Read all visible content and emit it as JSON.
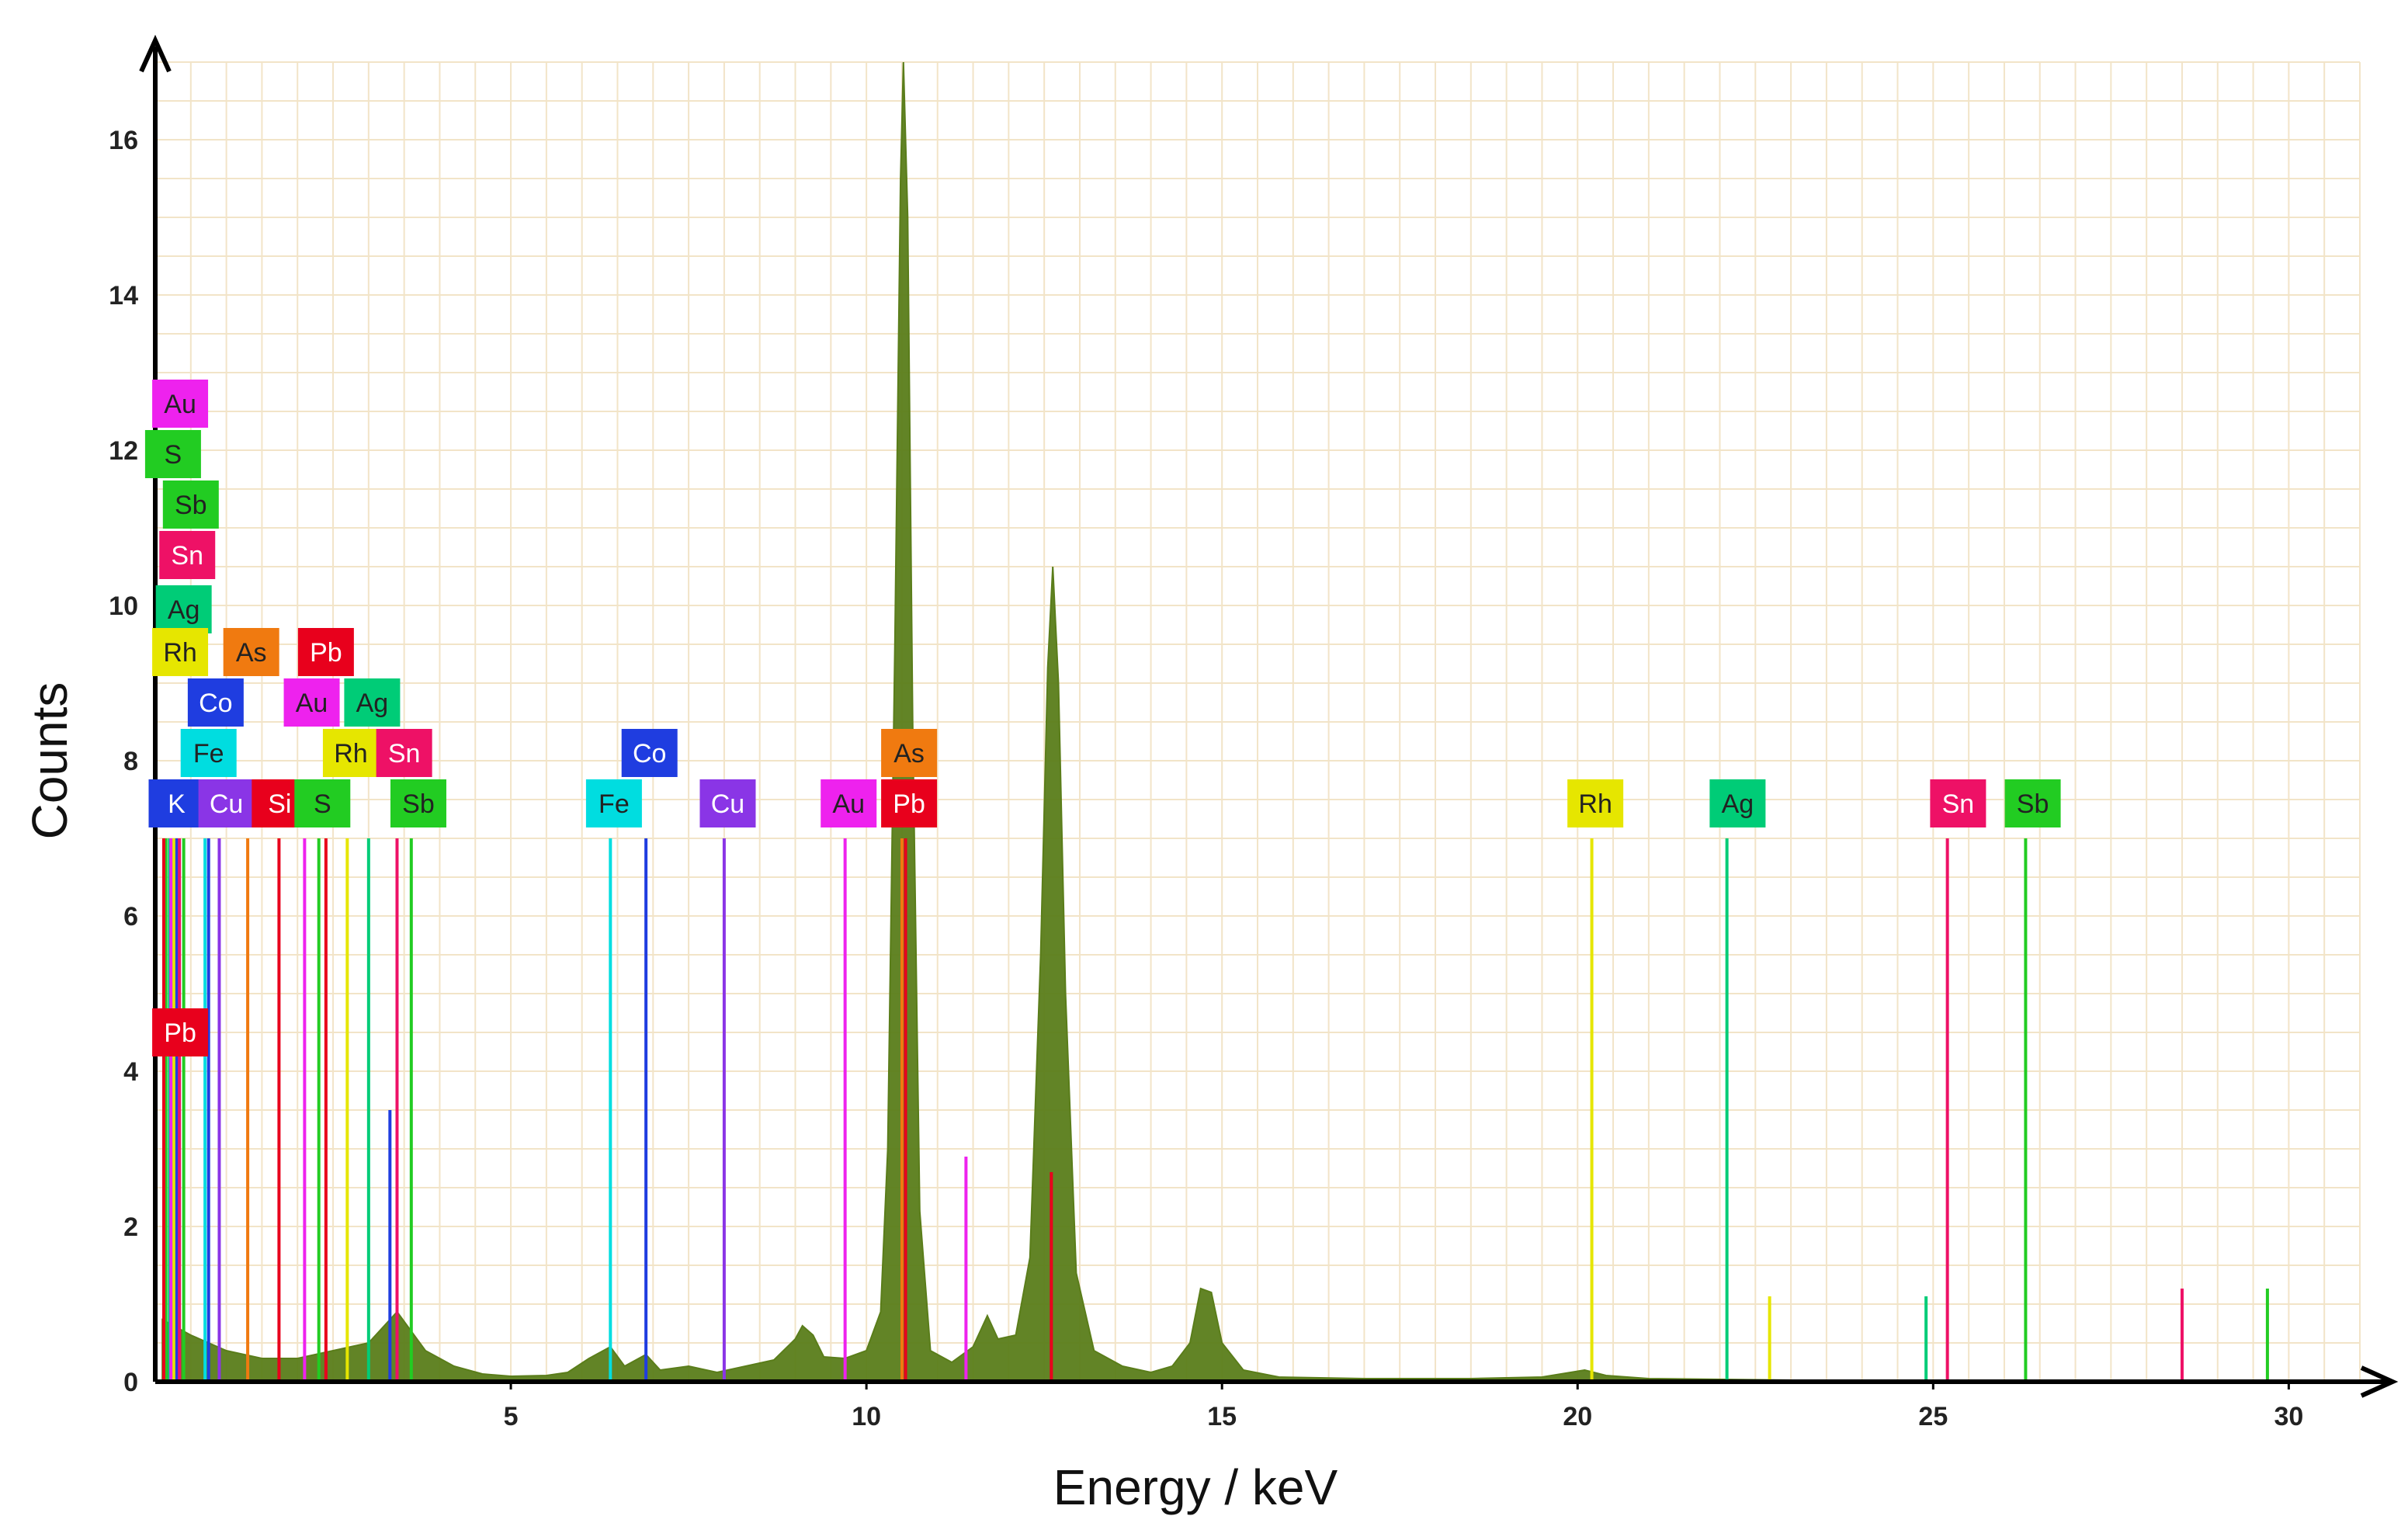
{
  "chart_data": {
    "type": "line",
    "xlabel": "Energy / keV",
    "ylabel": "Counts",
    "xlim": [
      0,
      31
    ],
    "ylim": [
      0,
      17
    ],
    "xticks": [
      5,
      10,
      15,
      20,
      25,
      30
    ],
    "yticks": [
      0,
      2,
      4,
      6,
      8,
      10,
      12,
      14,
      16
    ],
    "grid": true,
    "grid_color": "#f2e4c8",
    "spectrum_color": "#5a7d1a",
    "spectrum": {
      "name": "spectrum",
      "points": [
        [
          0.1,
          0.8
        ],
        [
          0.5,
          0.6
        ],
        [
          1.0,
          0.4
        ],
        [
          1.5,
          0.3
        ],
        [
          2.0,
          0.3
        ],
        [
          2.5,
          0.4
        ],
        [
          3.0,
          0.5
        ],
        [
          3.4,
          0.9
        ],
        [
          3.8,
          0.4
        ],
        [
          4.2,
          0.2
        ],
        [
          4.6,
          0.1
        ],
        [
          5.0,
          0.07
        ],
        [
          5.5,
          0.08
        ],
        [
          5.8,
          0.12
        ],
        [
          6.1,
          0.3
        ],
        [
          6.4,
          0.45
        ],
        [
          6.6,
          0.2
        ],
        [
          6.9,
          0.35
        ],
        [
          7.1,
          0.15
        ],
        [
          7.5,
          0.2
        ],
        [
          7.9,
          0.12
        ],
        [
          8.3,
          0.2
        ],
        [
          8.7,
          0.28
        ],
        [
          9.0,
          0.55
        ],
        [
          9.1,
          0.72
        ],
        [
          9.25,
          0.6
        ],
        [
          9.4,
          0.32
        ],
        [
          9.7,
          0.3
        ],
        [
          10.0,
          0.4
        ],
        [
          10.2,
          0.9
        ],
        [
          10.3,
          3.0
        ],
        [
          10.4,
          9.5
        ],
        [
          10.48,
          15.5
        ],
        [
          10.52,
          17.0
        ],
        [
          10.58,
          15.0
        ],
        [
          10.65,
          8.5
        ],
        [
          10.75,
          2.2
        ],
        [
          10.9,
          0.4
        ],
        [
          11.2,
          0.25
        ],
        [
          11.5,
          0.45
        ],
        [
          11.7,
          0.85
        ],
        [
          11.85,
          0.55
        ],
        [
          12.1,
          0.6
        ],
        [
          12.3,
          1.6
        ],
        [
          12.45,
          5.5
        ],
        [
          12.55,
          9.2
        ],
        [
          12.62,
          10.5
        ],
        [
          12.7,
          9.0
        ],
        [
          12.8,
          5.0
        ],
        [
          12.95,
          1.4
        ],
        [
          13.2,
          0.4
        ],
        [
          13.6,
          0.2
        ],
        [
          14.0,
          0.12
        ],
        [
          14.3,
          0.2
        ],
        [
          14.55,
          0.5
        ],
        [
          14.7,
          1.2
        ],
        [
          14.85,
          1.15
        ],
        [
          15.0,
          0.5
        ],
        [
          15.3,
          0.15
        ],
        [
          15.8,
          0.06
        ],
        [
          17.0,
          0.04
        ],
        [
          18.5,
          0.04
        ],
        [
          19.5,
          0.06
        ],
        [
          20.1,
          0.15
        ],
        [
          20.4,
          0.08
        ],
        [
          21.0,
          0.04
        ],
        [
          23.0,
          0.02
        ],
        [
          26.0,
          0.02
        ],
        [
          28.0,
          0.01
        ],
        [
          30.5,
          0.01
        ]
      ]
    },
    "lines": [
      {
        "el": "K",
        "color": "#1f3de0",
        "x": [
          0.3,
          3.3
        ],
        "h": [
          7.0,
          3.5
        ]
      },
      {
        "el": "Cu",
        "color": "#8a35e6",
        "x": [
          0.9,
          8.0
        ],
        "h": [
          7.0,
          7.0
        ]
      },
      {
        "el": "Fe",
        "color": "#00dde0",
        "x": [
          0.7,
          6.4
        ],
        "h": [
          7.0,
          7.0
        ]
      },
      {
        "el": "Co",
        "color": "#1f3de0",
        "x": [
          0.75,
          6.9
        ],
        "h": [
          7.0,
          7.0
        ]
      },
      {
        "el": "Si",
        "color": "#e8001c",
        "x": [
          1.74
        ],
        "h": [
          7.0
        ]
      },
      {
        "el": "S",
        "color": "#22cc22",
        "x": [
          0.15,
          2.3
        ],
        "h": [
          7.0,
          7.0
        ]
      },
      {
        "el": "Rh",
        "color": "#e6e600",
        "x": [
          0.26,
          2.7,
          20.2,
          22.7
        ],
        "h": [
          7.0,
          7.0,
          7.0,
          1.1
        ]
      },
      {
        "el": "Ag",
        "color": "#00cc77",
        "x": [
          0.2,
          3.0,
          22.1,
          24.9
        ],
        "h": [
          7.0,
          7.0,
          7.0,
          1.1
        ]
      },
      {
        "el": "Sn",
        "color": "#ee1166",
        "x": [
          0.34,
          3.4,
          25.2,
          28.5
        ],
        "h": [
          7.0,
          7.0,
          7.0,
          1.2
        ]
      },
      {
        "el": "Sb",
        "color": "#22cc22",
        "x": [
          0.4,
          3.6,
          26.3,
          29.7
        ],
        "h": [
          7.0,
          7.0,
          7.0,
          1.2
        ]
      },
      {
        "el": "As",
        "color": "#f07a10",
        "x": [
          1.3,
          10.5
        ],
        "h": [
          7.0,
          7.0
        ]
      },
      {
        "el": "Pb",
        "color": "#e8001c",
        "x": [
          0.12,
          2.4,
          10.55,
          12.6
        ],
        "h": [
          7.0,
          7.0,
          7.0,
          2.7
        ]
      },
      {
        "el": "Au",
        "color": "#ee22ee",
        "x": [
          0.22,
          2.1,
          9.7,
          11.4
        ],
        "h": [
          7.0,
          7.0,
          7.0,
          2.9
        ]
      }
    ],
    "labels": [
      {
        "text": "Au",
        "color": "#ee22ee",
        "x": 0.35,
        "y": 12.6
      },
      {
        "text": "S",
        "color": "#22cc22",
        "x": 0.25,
        "y": 11.95
      },
      {
        "text": "Sb",
        "color": "#22cc22",
        "x": 0.5,
        "y": 11.3
      },
      {
        "text": "Sn",
        "color": "#ee1166",
        "x": 0.45,
        "y": 10.65
      },
      {
        "text": "Ag",
        "color": "#00cc77",
        "x": 0.4,
        "y": 9.95
      },
      {
        "text": "Rh",
        "color": "#e6e600",
        "x": 0.35,
        "y": 9.4
      },
      {
        "text": "As",
        "color": "#f07a10",
        "x": 1.35,
        "y": 9.4
      },
      {
        "text": "Pb",
        "color": "#e8001c",
        "x": 2.4,
        "y": 9.4
      },
      {
        "text": "Co",
        "color": "#1f3de0",
        "x": 0.85,
        "y": 8.75
      },
      {
        "text": "Au",
        "color": "#ee22ee",
        "x": 2.2,
        "y": 8.75
      },
      {
        "text": "Ag",
        "color": "#00cc77",
        "x": 3.05,
        "y": 8.75
      },
      {
        "text": "Fe",
        "color": "#00dde0",
        "x": 0.75,
        "y": 8.1
      },
      {
        "text": "Rh",
        "color": "#e6e600",
        "x": 2.75,
        "y": 8.1
      },
      {
        "text": "Sn",
        "color": "#ee1166",
        "x": 3.5,
        "y": 8.1
      },
      {
        "text": "K",
        "color": "#1f3de0",
        "x": 0.3,
        "y": 7.45
      },
      {
        "text": "Cu",
        "color": "#8a35e6",
        "x": 1.0,
        "y": 7.45
      },
      {
        "text": "Si",
        "color": "#e8001c",
        "x": 1.75,
        "y": 7.45
      },
      {
        "text": "S",
        "color": "#22cc22",
        "x": 2.35,
        "y": 7.45
      },
      {
        "text": "Sb",
        "color": "#22cc22",
        "x": 3.7,
        "y": 7.45
      },
      {
        "text": "Fe",
        "color": "#00dde0",
        "x": 6.45,
        "y": 7.45
      },
      {
        "text": "Co",
        "color": "#1f3de0",
        "x": 6.95,
        "y": 8.1
      },
      {
        "text": "Cu",
        "color": "#8a35e6",
        "x": 8.05,
        "y": 7.45
      },
      {
        "text": "Au",
        "color": "#ee22ee",
        "x": 9.75,
        "y": 7.45
      },
      {
        "text": "As",
        "color": "#f07a10",
        "x": 10.6,
        "y": 8.1
      },
      {
        "text": "Pb",
        "color": "#e8001c",
        "x": 10.6,
        "y": 7.45
      },
      {
        "text": "Rh",
        "color": "#e6e600",
        "x": 20.25,
        "y": 7.45
      },
      {
        "text": "Ag",
        "color": "#00cc77",
        "x": 22.25,
        "y": 7.45
      },
      {
        "text": "Sn",
        "color": "#ee1166",
        "x": 25.35,
        "y": 7.45
      },
      {
        "text": "Sb",
        "color": "#22cc22",
        "x": 26.4,
        "y": 7.45
      },
      {
        "text": "Pb",
        "color": "#e8001c",
        "x": 0.35,
        "y": 4.5
      }
    ]
  }
}
